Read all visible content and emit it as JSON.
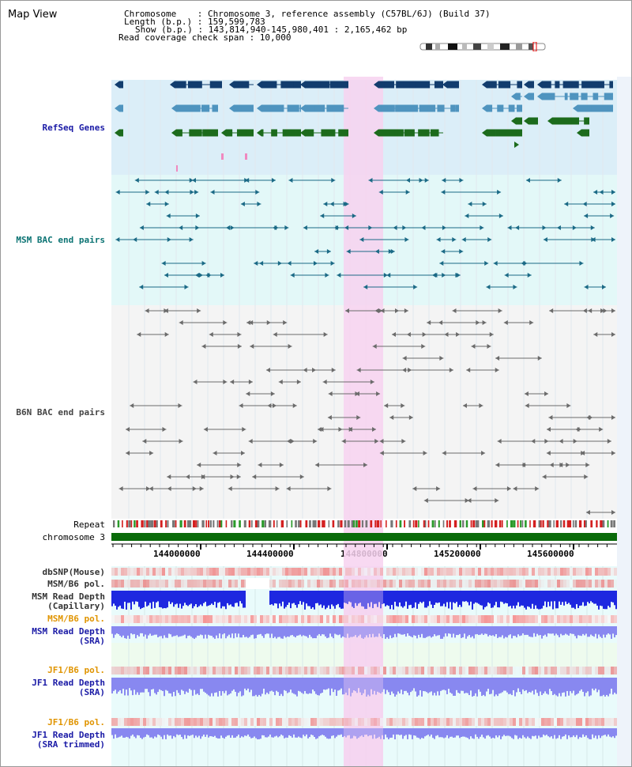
{
  "header": {
    "title": "Map View",
    "chrom_line": "Chromosome    : Chromosome 3, reference assembly (C57BL/6J) (Build 37)",
    "length_line": "Length (b.p.) : 159,599,783",
    "show_line": "Show (b.p.) : 143,814,940-145,980,401 : 2,165,462 bp",
    "coverage_line": "Read coverage check span : 10,000"
  },
  "tracks": {
    "refseq": "RefSeq Genes",
    "msm_bac": "MSM BAC end pairs",
    "b6n_bac": "B6N BAC end pairs",
    "repeat": "Repeat",
    "chromosome": "chromosome 3",
    "dbsnp": "dbSNP(Mouse)",
    "msm_b6_pol_1": "MSM/B6 pol.",
    "msm_read_depth_cap_1": "MSM Read Depth",
    "msm_read_depth_cap_2": "(Capillary)",
    "msm_b6_pol_2": "MSM/B6 pol.",
    "msm_read_depth_sra_1": "MSM Read Depth",
    "msm_read_depth_sra_2": "(SRA)",
    "jf1_b6_pol_1": "JF1/B6 pol.",
    "jf1_read_depth_sra_1": "JF1 Read Depth",
    "jf1_read_depth_sra_2": "(SRA)",
    "jf1_b6_pol_2": "JF1/B6 pol.",
    "jf1_read_depth_trim_1": "JF1 Read Depth",
    "jf1_read_depth_trim_2": "(SRA trimmed)"
  },
  "axis": {
    "ticks": [
      "144000000",
      "144400000",
      "144800000",
      "145200000",
      "145600000"
    ]
  },
  "colors": {
    "highlight": "#f7d2f0",
    "refseq_bg": "#dbeef8",
    "msm_bg": "#e3f8f8",
    "b6n_bg": "#f4f4f4",
    "gene_dark": "#123d6e",
    "gene_mid": "#4f94bf",
    "gene_green": "#1c6b1c",
    "chromosome_bar": "#0a6b0a",
    "read_depth_blue": "#1e28e0",
    "read_depth_light": "#8888f0"
  }
}
